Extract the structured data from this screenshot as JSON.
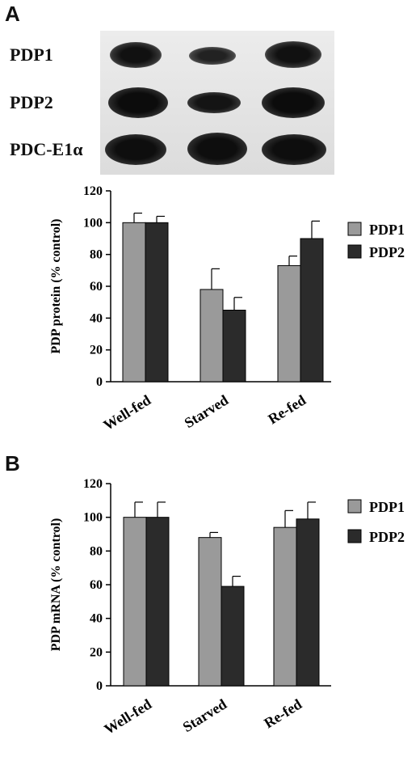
{
  "panels": [
    {
      "letter": "A",
      "blot_labels": [
        "PDP1",
        "PDP2",
        "PDC-E1α"
      ],
      "chart_data": {
        "type": "bar",
        "categories": [
          "Well-fed",
          "Starved",
          "Re-fed"
        ],
        "series": [
          {
            "name": "PDP1",
            "values": [
              100,
              58,
              73
            ],
            "errors": [
              6,
              13,
              6
            ],
            "color": "#9a9a9a"
          },
          {
            "name": "PDP2",
            "values": [
              100,
              45,
              90
            ],
            "errors": [
              4,
              8,
              11
            ],
            "color": "#2b2b2b"
          }
        ],
        "ylabel": "PDP protein (% control)",
        "ylim": [
          0,
          120
        ],
        "yticks": [
          0,
          20,
          40,
          60,
          80,
          100,
          120
        ],
        "legend": "right",
        "grid": false
      }
    },
    {
      "letter": "B",
      "chart_data": {
        "type": "bar",
        "categories": [
          "Well-fed",
          "Starved",
          "Re-fed"
        ],
        "series": [
          {
            "name": "PDP1",
            "values": [
              100,
              88,
              94
            ],
            "errors": [
              9,
              3,
              10
            ],
            "color": "#9a9a9a"
          },
          {
            "name": "PDP2",
            "values": [
              100,
              59,
              99
            ],
            "errors": [
              9,
              6,
              10
            ],
            "color": "#2b2b2b"
          }
        ],
        "ylabel": "PDP mRNA (% control)",
        "ylim": [
          0,
          120
        ],
        "yticks": [
          0,
          20,
          40,
          60,
          80,
          100,
          120
        ],
        "legend": "right",
        "grid": false
      }
    }
  ]
}
